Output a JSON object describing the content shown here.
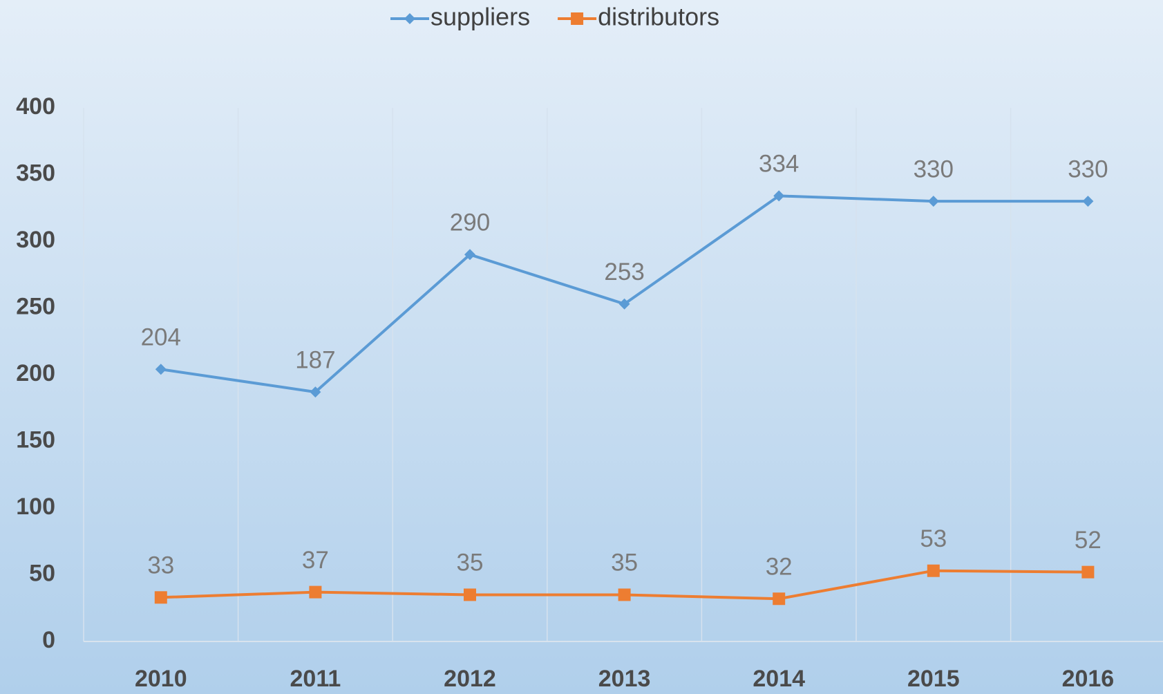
{
  "chart_data": {
    "type": "line",
    "categories": [
      "2010",
      "2011",
      "2012",
      "2013",
      "2014",
      "2015",
      "2016"
    ],
    "series": [
      {
        "name": "suppliers",
        "color": "#5b9bd5",
        "marker": "diamond",
        "values": [
          204,
          187,
          290,
          253,
          334,
          330,
          330
        ]
      },
      {
        "name": "distributors",
        "color": "#ed7d31",
        "marker": "square",
        "values": [
          33,
          37,
          35,
          35,
          32,
          53,
          52
        ]
      }
    ],
    "ylim": [
      0,
      400
    ],
    "yticks": [
      0,
      50,
      100,
      150,
      200,
      250,
      300,
      350,
      400
    ],
    "legend": "top"
  }
}
